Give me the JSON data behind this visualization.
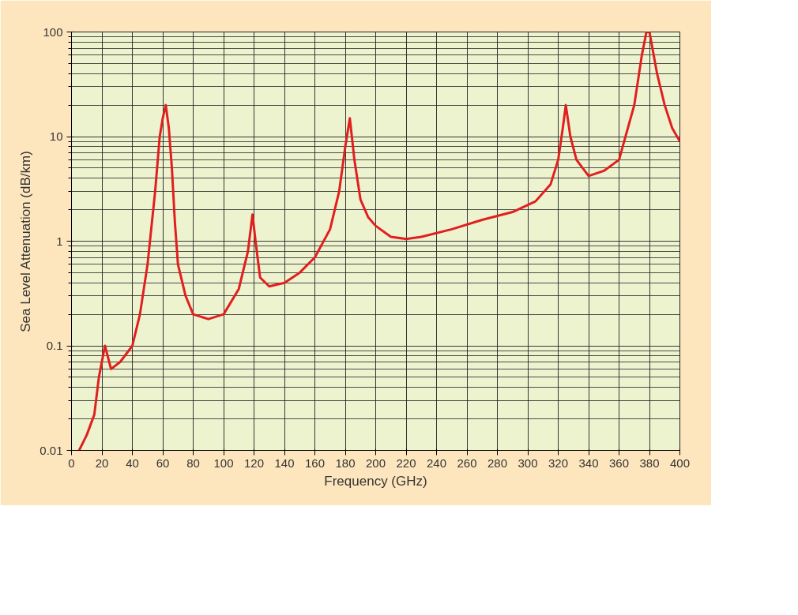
{
  "chart_data": {
    "type": "line",
    "xlabel": "Frequency (GHz)",
    "ylabel": "Sea Level Attenuation (dB/km)",
    "log": "y",
    "grid": true,
    "marker": "none",
    "line_style": "solid",
    "xlim": [
      0,
      400
    ],
    "xticks": [
      0,
      20,
      40,
      60,
      80,
      100,
      120,
      140,
      160,
      180,
      200,
      220,
      240,
      260,
      280,
      300,
      320,
      340,
      360,
      380,
      400
    ],
    "ylim": [
      0.01,
      100
    ],
    "yticks": [
      0.01,
      0.1,
      1,
      10,
      100
    ],
    "series": [
      {
        "color": "#e02020",
        "x": [
          5,
          10,
          15,
          18,
          22,
          26,
          32,
          40,
          45,
          50,
          55,
          58,
          60,
          62,
          64,
          66,
          68,
          70,
          75,
          80,
          90,
          100,
          110,
          116,
          119,
          121,
          124,
          130,
          140,
          150,
          160,
          170,
          176,
          180,
          183,
          186,
          190,
          195,
          200,
          210,
          220,
          230,
          250,
          270,
          290,
          305,
          315,
          320,
          323,
          325,
          328,
          332,
          340,
          350,
          360,
          370,
          375,
          378,
          380,
          385,
          390,
          395,
          400
        ],
        "values": [
          0.01,
          0.014,
          0.022,
          0.05,
          0.1,
          0.06,
          0.07,
          0.1,
          0.2,
          0.6,
          3,
          10,
          15,
          20,
          12,
          5,
          1.5,
          0.6,
          0.3,
          0.2,
          0.18,
          0.2,
          0.35,
          0.8,
          1.8,
          1,
          0.45,
          0.37,
          0.4,
          0.5,
          0.7,
          1.3,
          3,
          8,
          15,
          6,
          2.5,
          1.7,
          1.4,
          1.1,
          1.05,
          1.1,
          1.3,
          1.6,
          1.9,
          2.4,
          3.5,
          6,
          12,
          20,
          10,
          6,
          4.2,
          4.7,
          6,
          20,
          60,
          100,
          100,
          40,
          20,
          12,
          9
        ]
      }
    ]
  }
}
